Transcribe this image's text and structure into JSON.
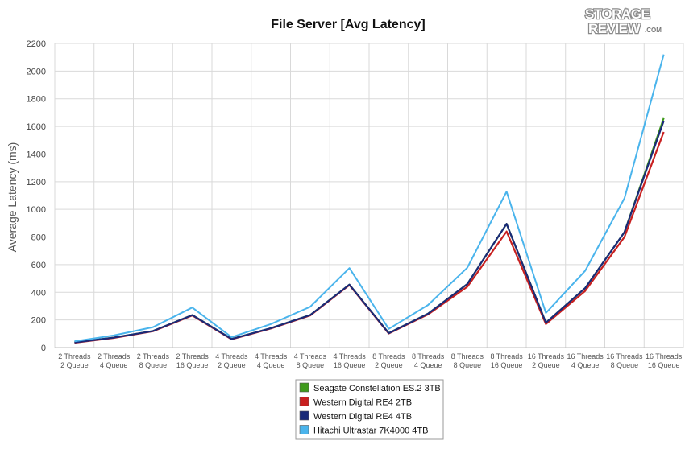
{
  "chart_data": {
    "type": "line",
    "title": "File Server [Avg Latency]",
    "ylabel": "Average Latency (ms)",
    "xlabel": "",
    "ylim": [
      0,
      2200
    ],
    "yticks": [
      0,
      200,
      400,
      600,
      800,
      1000,
      1200,
      1400,
      1600,
      1800,
      2000,
      2200
    ],
    "grid": true,
    "legend_position": "bottom-center",
    "categories": [
      [
        "2 Threads",
        "2 Queue"
      ],
      [
        "2 Threads",
        "4 Queue"
      ],
      [
        "2 Threads",
        "8 Queue"
      ],
      [
        "2 Threads",
        "16 Queue"
      ],
      [
        "4 Threads",
        "2 Queue"
      ],
      [
        "4 Threads",
        "4 Queue"
      ],
      [
        "4 Threads",
        "8 Queue"
      ],
      [
        "4 Threads",
        "16 Queue"
      ],
      [
        "8 Threads",
        "2 Queue"
      ],
      [
        "8 Threads",
        "4 Queue"
      ],
      [
        "8 Threads",
        "8 Queue"
      ],
      [
        "8 Threads",
        "16 Queue"
      ],
      [
        "16 Threads",
        "2 Queue"
      ],
      [
        "16 Threads",
        "4 Queue"
      ],
      [
        "16 Threads",
        "8 Queue"
      ],
      [
        "16 Threads",
        "16 Queue"
      ]
    ],
    "series": [
      {
        "name": "Seagate Constellation ES.2 3TB",
        "color": "#3f9a1c",
        "values": [
          38,
          72,
          120,
          235,
          62,
          140,
          235,
          455,
          105,
          245,
          460,
          895,
          180,
          430,
          835,
          1660
        ]
      },
      {
        "name": "Western Digital RE4 2TB",
        "color": "#c82020",
        "values": [
          35,
          70,
          118,
          232,
          60,
          138,
          232,
          452,
          102,
          240,
          440,
          840,
          170,
          410,
          800,
          1560
        ]
      },
      {
        "name": "Western Digital RE4 4TB",
        "color": "#1a2a78",
        "values": [
          37,
          72,
          120,
          235,
          62,
          140,
          235,
          455,
          104,
          245,
          460,
          895,
          180,
          430,
          835,
          1640
        ]
      },
      {
        "name": "Hitachi Ultrastar 7K4000 4TB",
        "color": "#4ab4ec",
        "values": [
          45,
          88,
          148,
          290,
          75,
          170,
          295,
          575,
          135,
          308,
          578,
          1128,
          250,
          555,
          1080,
          2120
        ]
      }
    ]
  },
  "logo": {
    "line1": "STORAGE",
    "line2": "REVIEW",
    "suffix": ".COM"
  }
}
